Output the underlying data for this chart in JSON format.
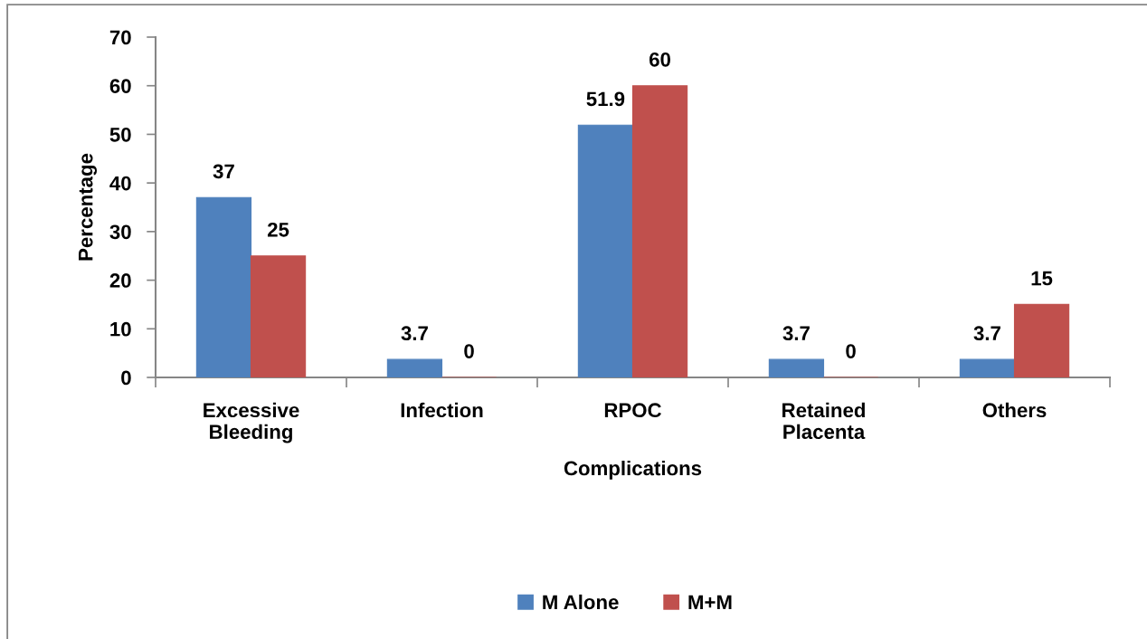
{
  "chart_data": {
    "type": "bar",
    "xlabel": "Complications",
    "ylabel": "Percentage",
    "categories": [
      "Excessive\nBleeding",
      "Infection",
      "RPOC",
      "Retained\nPlacenta",
      "Others"
    ],
    "series": [
      {
        "name": "M Alone",
        "color": "#4f81bd",
        "values": [
          37,
          3.7,
          51.9,
          3.7,
          3.7
        ]
      },
      {
        "name": "M+M",
        "color": "#c0504d",
        "values": [
          25,
          0,
          60,
          0,
          15
        ]
      }
    ],
    "ylim": [
      0,
      70
    ],
    "yticks": [
      0,
      10,
      20,
      30,
      40,
      50,
      60,
      70
    ],
    "data_labels": true,
    "grid": false,
    "legend": "bottom"
  }
}
